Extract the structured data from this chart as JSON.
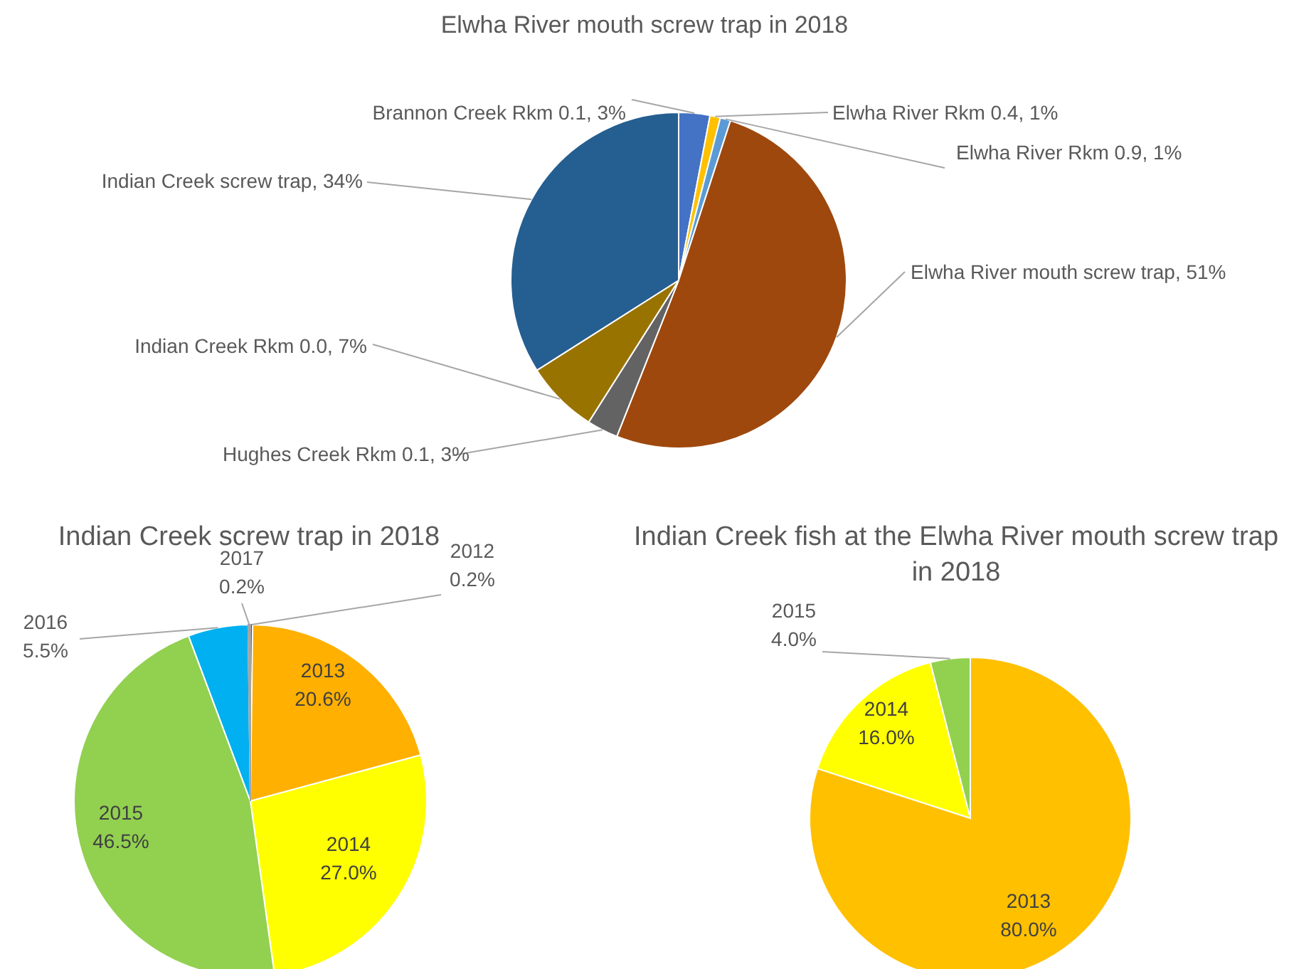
{
  "chart_data": [
    {
      "type": "pie",
      "title": "Elwha River mouth screw trap in 2018",
      "categories": [
        "Brannon Creek Rkm 0.1",
        "Elwha River Rkm 0.4",
        "Elwha River Rkm 0.9",
        "Elwha River mouth screw trap",
        "Hughes Creek Rkm 0.1",
        "Indian Creek Rkm 0.0",
        "Indian Creek screw trap"
      ],
      "values": [
        3,
        1,
        1,
        51,
        3,
        7,
        34
      ],
      "colors": [
        "#4472c4",
        "#ffc000",
        "#5b9bd5",
        "#9e480e",
        "#636363",
        "#997300",
        "#255e91"
      ],
      "value_labels": [
        "3%",
        "1%",
        "1%",
        "51%",
        "3%",
        "7%",
        "34%"
      ]
    },
    {
      "type": "pie",
      "title": "Indian Creek screw trap in 2018",
      "categories": [
        "2012",
        "2013",
        "2014",
        "2015",
        "2016",
        "2017"
      ],
      "values": [
        0.2,
        20.6,
        27.0,
        46.5,
        5.5,
        0.2
      ],
      "colors": [
        "#7030a0",
        "#ffb000",
        "#ffff00",
        "#92d050",
        "#00b0f0",
        "#a5a5a5"
      ],
      "value_labels": [
        "0.2%",
        "20.6%",
        "27.0%",
        "46.5%",
        "5.5%",
        "0.2%"
      ]
    },
    {
      "type": "pie",
      "title": "Indian Creek fish at the Elwha River mouth screw trap in 2018",
      "categories": [
        "2013",
        "2014",
        "2015"
      ],
      "values": [
        80.0,
        16.0,
        4.0
      ],
      "colors": [
        "#ffc000",
        "#ffff00",
        "#92d050"
      ],
      "value_labels": [
        "80.0%",
        "16.0%",
        "4.0%"
      ]
    }
  ]
}
